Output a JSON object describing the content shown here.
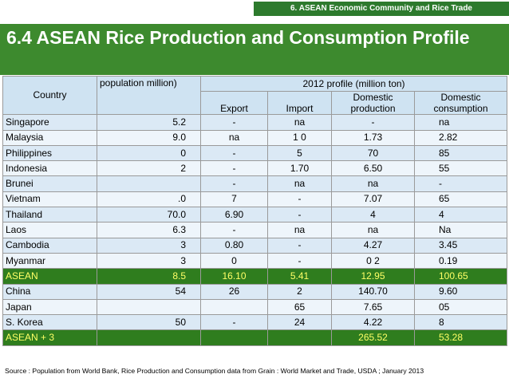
{
  "header": {
    "section_tag": "6. ASEAN  Economic Community and Rice Trade"
  },
  "title": "6.4 ASEAN Rice Production and Consumption Profile",
  "table": {
    "country_header": "Country",
    "population_header": "population  million)",
    "profile_header": "2012 profile (million ton)",
    "export_header": "Export",
    "import_header": "Import",
    "dprod_header": "Domestic production",
    "dcons_header": "Domestic consumption",
    "rows": [
      {
        "country": "Singapore",
        "population": "5.2",
        "export": "-",
        "import": "na",
        "production": "-",
        "consumption": "na"
      },
      {
        "country": "Malaysia",
        "population": "9.0",
        "export": "na",
        "import": "1 0",
        "production": "1.73",
        "consumption": "2.82"
      },
      {
        "country": "Philippines",
        "population": "0",
        "export": "-",
        "import": "5",
        "production": "70",
        "consumption": "85"
      },
      {
        "country": "Indonesia",
        "population": "2",
        "export": "-",
        "import": "1.70",
        "production": "6.50",
        "consumption": "55"
      },
      {
        "country": "Brunei",
        "population": "",
        "export": "-",
        "import": "na",
        "production": "na",
        "consumption": "-"
      },
      {
        "country": "Vietnam",
        "population": ".0",
        "export": "7",
        "import": "-",
        "production": "7.07",
        "consumption": "65"
      },
      {
        "country": "Thailand",
        "population": "70.0",
        "export": "6.90",
        "import": "-",
        "production": "4",
        "consumption": "4"
      },
      {
        "country": "Laos",
        "population": "6.3",
        "export": "-",
        "import": "na",
        "production": "na",
        "consumption": "Na"
      },
      {
        "country": "Cambodia",
        "population": "3",
        "export": "0.80",
        "import": "-",
        "production": "4.27",
        "consumption": "3.45"
      },
      {
        "country": "Myanmar",
        "population": "3",
        "export": "0",
        "import": "-",
        "production": "0  2",
        "consumption": "0.19"
      }
    ],
    "asean": {
      "country": "ASEAN",
      "population": "8.5",
      "export": "16.10",
      "import": "5.41",
      "production": "12.95",
      "consumption": "100.65"
    },
    "plus_rows": [
      {
        "country": "China",
        "population": "54",
        "export": "26",
        "import": "2",
        "production": "140.70",
        "consumption": "9.60"
      },
      {
        "country": "Japan",
        "population": "",
        "export": "",
        "import": "65",
        "production": "7.65",
        "consumption": "05"
      },
      {
        "country": "S. Korea",
        "population": "50",
        "export": "-",
        "import": "24",
        "production": "4.22",
        "consumption": "8"
      }
    ],
    "asean3": {
      "country": "ASEAN + 3",
      "population": "",
      "export": "",
      "import": "",
      "production": "265.52",
      "consumption": "53.28"
    }
  },
  "source": "Source : Population from World Bank, Rice Production and Consumption data from Grain : World Market and Trade, USDA ; January 2013",
  "colors": {
    "title_bg": "#3d8a2e",
    "tag_bg": "#2d7a2d",
    "header_bg": "#cfe3f2",
    "summary_bg": "#2f7d1e",
    "summary_text": "#ffff66"
  }
}
